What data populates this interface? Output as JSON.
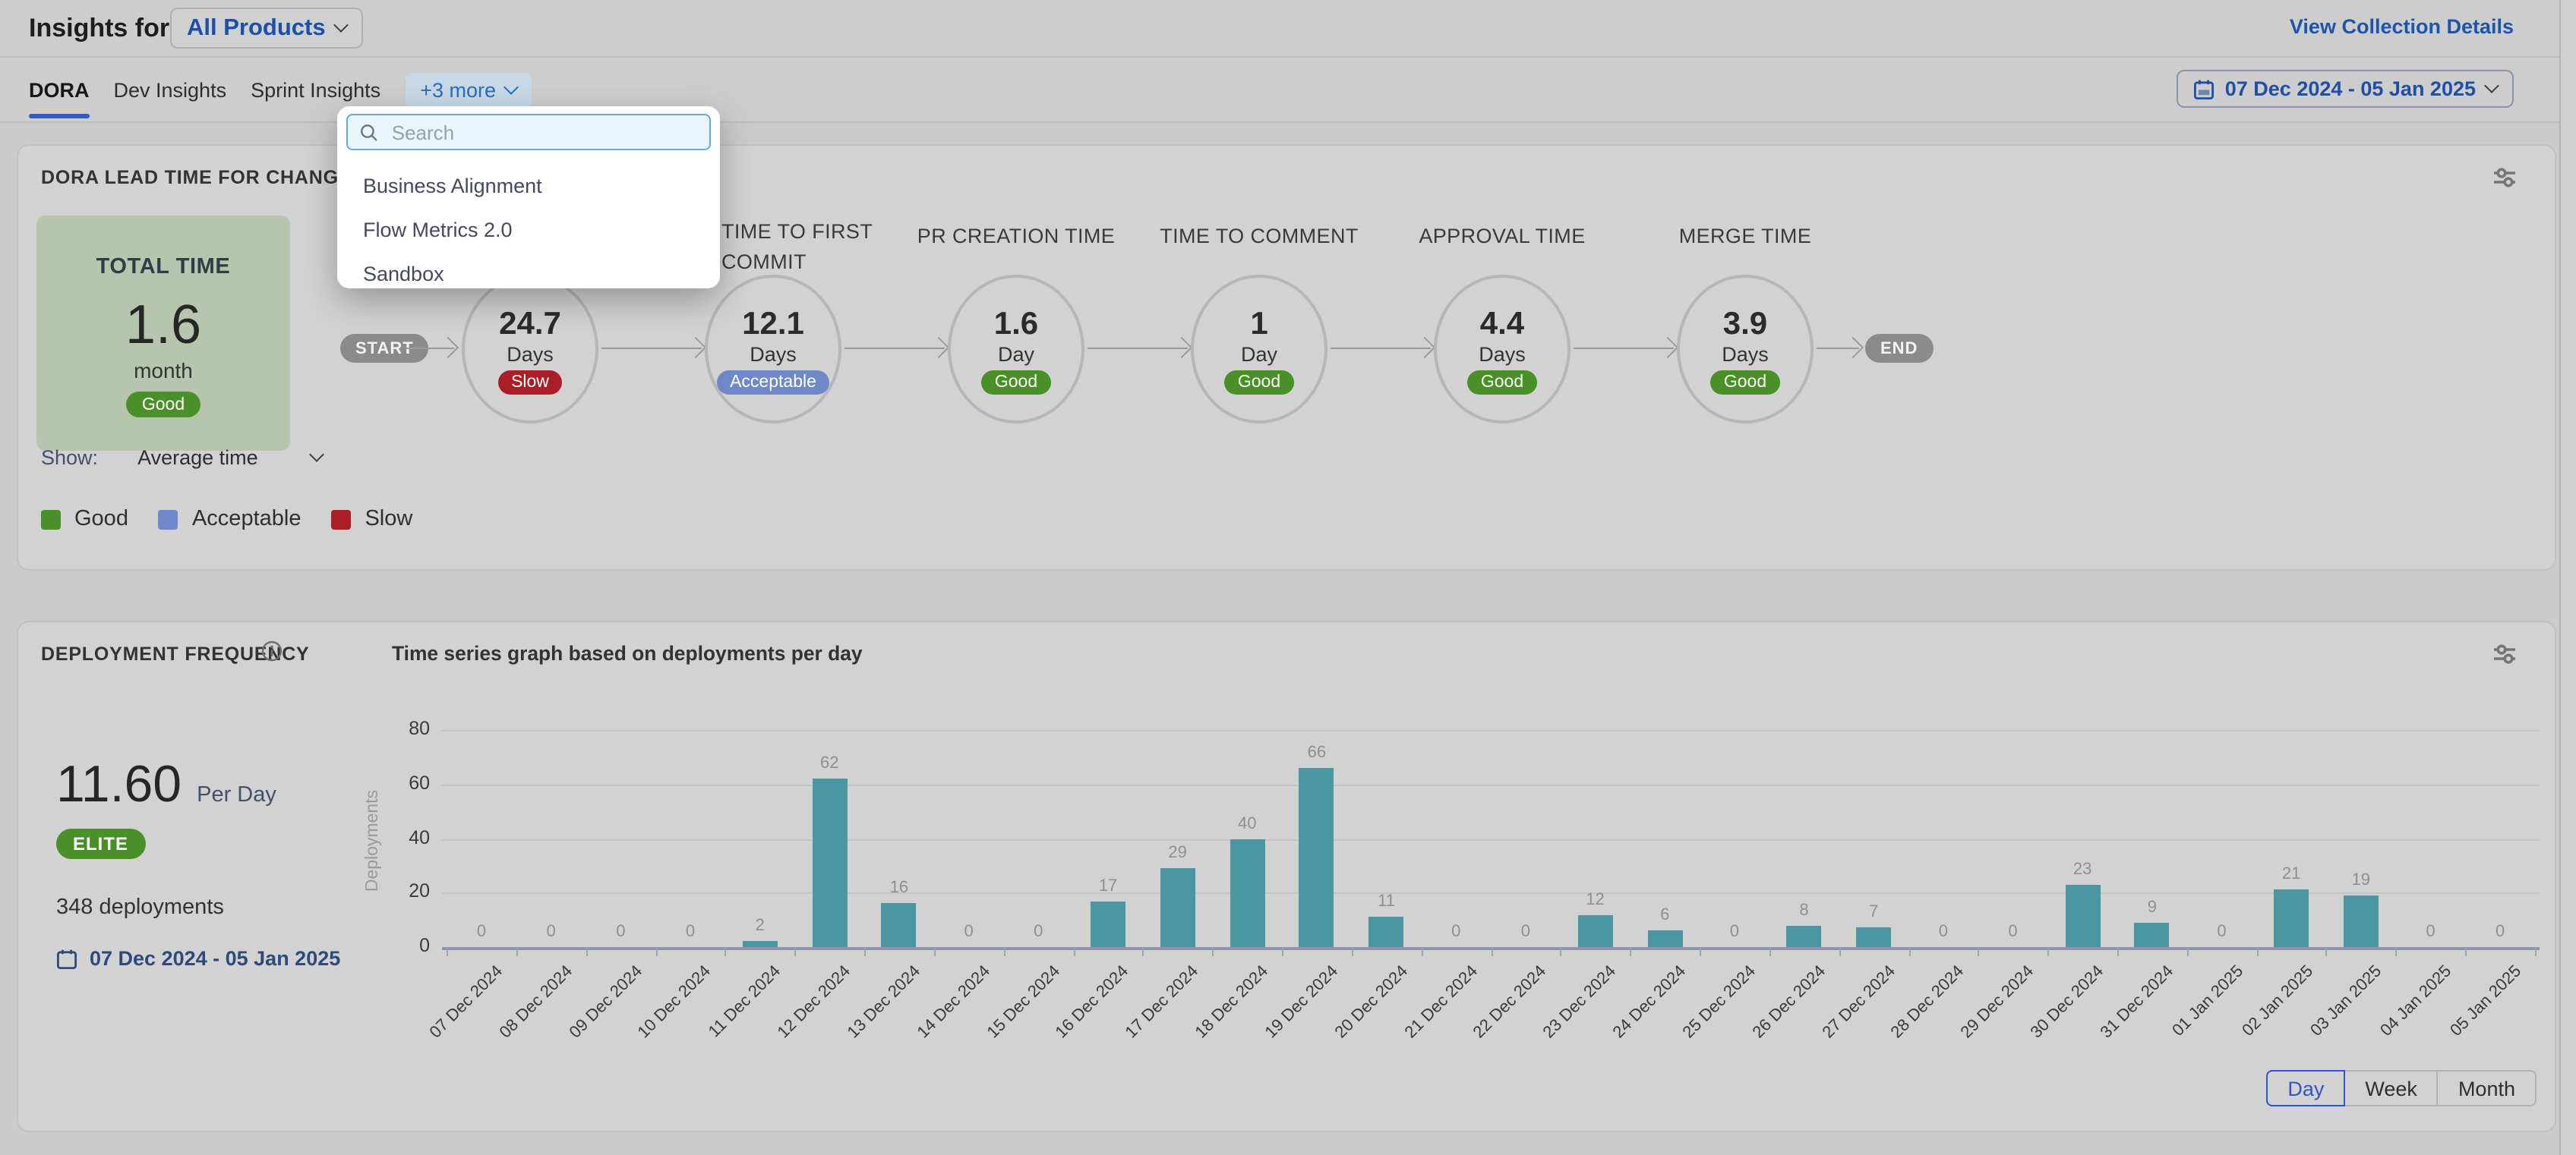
{
  "header": {
    "title": "Insights for",
    "collection_selector": "All Products",
    "view_details_link": "View Collection Details"
  },
  "tabs": {
    "items": [
      {
        "label": "DORA",
        "active": true
      },
      {
        "label": "Dev Insights",
        "active": false
      },
      {
        "label": "Sprint Insights",
        "active": false
      }
    ],
    "more_label": "+3 more"
  },
  "date_range_button": "07 Dec 2024 - 05 Jan 2025",
  "more_dropdown": {
    "search_placeholder": "Search",
    "items": [
      "Business Alignment",
      "Flow Metrics 2.0",
      "Sandbox"
    ]
  },
  "lead_time_card": {
    "title": "DORA LEAD TIME FOR CHANGES REPORT",
    "total": {
      "label": "TOTAL TIME",
      "value": "1.6",
      "unit": "month",
      "rating": "Good"
    },
    "start_label": "START",
    "end_label": "END",
    "stages": [
      {
        "label": "",
        "value": "24.7",
        "unit": "Days",
        "rating": "Slow"
      },
      {
        "label": "TIME TO FIRST COMMIT",
        "value": "12.1",
        "unit": "Days",
        "rating": "Acceptable"
      },
      {
        "label": "PR CREATION TIME",
        "value": "1.6",
        "unit": "Day",
        "rating": "Good"
      },
      {
        "label": "TIME TO COMMENT",
        "value": "1",
        "unit": "Day",
        "rating": "Good"
      },
      {
        "label": "APPROVAL TIME",
        "value": "4.4",
        "unit": "Days",
        "rating": "Good"
      },
      {
        "label": "MERGE TIME",
        "value": "3.9",
        "unit": "Days",
        "rating": "Good"
      }
    ],
    "show_label": "Show:",
    "show_value": "Average time",
    "legend": [
      {
        "label": "Good",
        "color": "#4a9029"
      },
      {
        "label": "Acceptable",
        "color": "#7088c8"
      },
      {
        "label": "Slow",
        "color": "#aa1e27"
      }
    ]
  },
  "deployment_card": {
    "title": "DEPLOYMENT FREQUENCY",
    "subtitle": "Time series graph based on deployments per day",
    "rate_value": "11.60",
    "rate_unit": "Per Day",
    "badge": "ELITE",
    "deployments_total": "348 deployments",
    "date_range": "07 Dec 2024 - 05 Jan 2025",
    "granularity": [
      "Day",
      "Week",
      "Month"
    ],
    "granularity_active": "Day"
  },
  "chart_data": {
    "type": "bar",
    "title": "Time series graph based on deployments per day",
    "xlabel": "",
    "ylabel": "Deployments",
    "ylim": [
      0,
      80
    ],
    "ytick_step": 20,
    "grid": true,
    "legend_position": "none",
    "bar_color": "#4b97a1",
    "categories": [
      "07 Dec 2024",
      "08 Dec 2024",
      "09 Dec 2024",
      "10 Dec 2024",
      "11 Dec 2024",
      "12 Dec 2024",
      "13 Dec 2024",
      "14 Dec 2024",
      "15 Dec 2024",
      "16 Dec 2024",
      "17 Dec 2024",
      "18 Dec 2024",
      "19 Dec 2024",
      "20 Dec 2024",
      "21 Dec 2024",
      "22 Dec 2024",
      "23 Dec 2024",
      "24 Dec 2024",
      "25 Dec 2024",
      "26 Dec 2024",
      "27 Dec 2024",
      "28 Dec 2024",
      "29 Dec 2024",
      "30 Dec 2024",
      "31 Dec 2024",
      "01 Jan 2025",
      "02 Jan 2025",
      "03 Jan 2025",
      "04 Jan 2025",
      "05 Jan 2025"
    ],
    "values": [
      0,
      0,
      0,
      0,
      2,
      62,
      16,
      0,
      0,
      17,
      29,
      40,
      66,
      11,
      0,
      0,
      12,
      6,
      0,
      8,
      7,
      0,
      0,
      23,
      9,
      0,
      21,
      19,
      0,
      0
    ]
  },
  "colors": {
    "page_bg": "#cbcbcb",
    "card_bg": "#d2d2d2",
    "accent_blue": "#1b55ae",
    "good": "#4a9029",
    "acceptable": "#7088c8",
    "slow": "#aa1e27",
    "total_box": "#b8c5ae",
    "bar_teal": "#4b97a1",
    "elite_badge": "#4a9029"
  }
}
